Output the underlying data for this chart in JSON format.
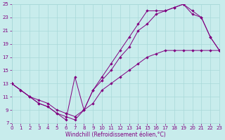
{
  "bg_color": "#c8ecec",
  "grid_color": "#a8d8d8",
  "line_color": "#800080",
  "xlim": [
    0,
    23
  ],
  "ylim": [
    7,
    25
  ],
  "xticks": [
    0,
    1,
    2,
    3,
    4,
    5,
    6,
    7,
    8,
    9,
    10,
    11,
    12,
    13,
    14,
    15,
    16,
    17,
    18,
    19,
    20,
    21,
    22,
    23
  ],
  "yticks": [
    7,
    9,
    11,
    13,
    15,
    17,
    19,
    21,
    23,
    25
  ],
  "xlabel": "Windchill (Refroidissement éolien,°C)",
  "curve1_x": [
    0,
    1,
    2,
    3,
    4,
    5,
    6,
    7,
    8,
    9,
    10,
    11,
    12,
    13,
    14,
    15,
    16,
    17,
    18,
    19,
    20,
    21,
    22,
    23
  ],
  "curve1_y": [
    13,
    12,
    11,
    10,
    9.5,
    8.5,
    8,
    7.5,
    9,
    12,
    14,
    16,
    18,
    20,
    22,
    24,
    24,
    24,
    24.5,
    25,
    23.5,
    23,
    20,
    18
  ],
  "curve2_x": [
    0,
    1,
    2,
    3,
    4,
    5,
    6,
    7,
    8,
    9,
    10,
    11,
    12,
    13,
    14,
    15,
    16,
    17,
    18,
    19,
    20,
    21,
    22,
    23
  ],
  "curve2_y": [
    13,
    12,
    11,
    10,
    9.5,
    8.5,
    7.5,
    14,
    9,
    12,
    13.5,
    15,
    17,
    18.5,
    21,
    22,
    23.5,
    24,
    24.5,
    25,
    24,
    23,
    20,
    18
  ],
  "curve3_x": [
    0,
    1,
    2,
    3,
    4,
    5,
    6,
    7,
    8,
    9,
    10,
    11,
    12,
    13,
    14,
    15,
    16,
    17,
    18,
    19,
    20,
    21,
    22,
    23
  ],
  "curve3_y": [
    13,
    12,
    11,
    10.5,
    10,
    9,
    8.5,
    8,
    9,
    10,
    12,
    13,
    14,
    15,
    16,
    17,
    17.5,
    18,
    18,
    18,
    18,
    18,
    18,
    18
  ]
}
